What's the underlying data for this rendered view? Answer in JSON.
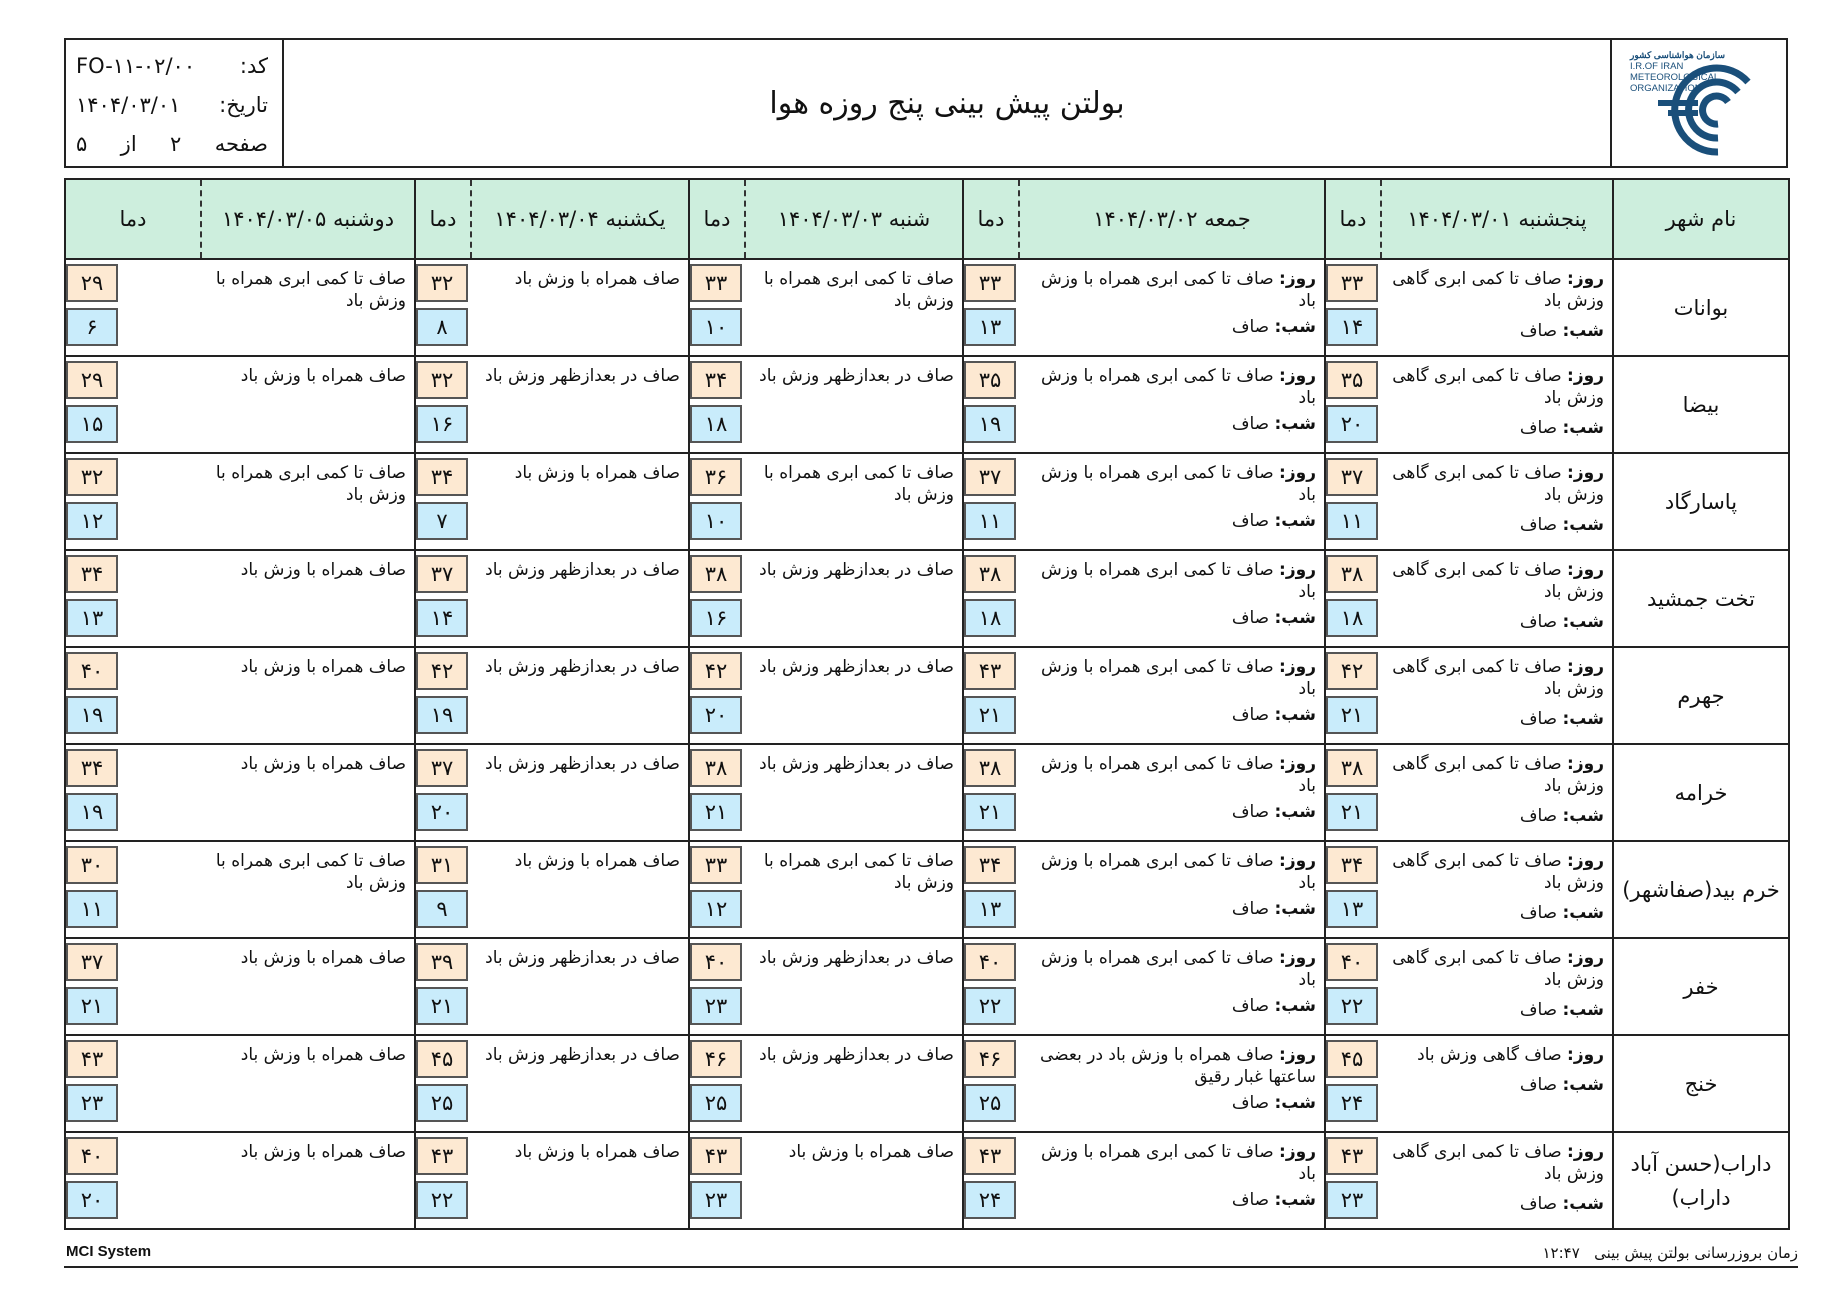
{
  "header": {
    "title": "بولتن پیش بینی پنج روزه هوا",
    "code_label": "کد:",
    "code_value": "FO-۱۱-۰۲/۰۰",
    "date_label": "تاریخ:",
    "date_value": "۱۴۰۴/۰۳/۰۱",
    "page_label": "صفحه",
    "page_current": "۲",
    "page_of": "از",
    "page_total": "۵",
    "logo": {
      "fa_line": "سازمان هواشناسی کشور",
      "en_line1": "I.R.OF IRAN",
      "en_line2": "METEOROLOGICAL",
      "en_line3": "ORGANIZATION"
    }
  },
  "table": {
    "city_header": "نام شهر",
    "temp_header": "دما",
    "days": [
      "پنجشنبه ۱۴۰۴/۰۳/۰۱",
      "جمعه ۱۴۰۴/۰۳/۰۲",
      "شنبه ۱۴۰۴/۰۳/۰۳",
      "یکشنبه ۱۴۰۴/۰۳/۰۴",
      "دوشنبه ۱۴۰۴/۰۳/۰۵"
    ],
    "day_label": "روز:",
    "night_label": "شب:",
    "rows": [
      {
        "city": "بوانات",
        "d1": {
          "day": "صاف تا کمی ابری گاهی وزش باد",
          "night": "صاف",
          "max": "۳۳",
          "min": "۱۴"
        },
        "d2": {
          "day": "صاف تا کمی ابری همراه با وزش باد",
          "night": "صاف",
          "max": "۳۳",
          "min": "۱۳"
        },
        "d3": {
          "text": "صاف تا کمی ابری همراه با وزش باد",
          "max": "۳۳",
          "min": "۱۰"
        },
        "d4": {
          "text": "صاف همراه با وزش باد",
          "max": "۳۲",
          "min": "۸"
        },
        "d5": {
          "text": "صاف تا کمی ابری همراه با وزش باد",
          "max": "۲۹",
          "min": "۶"
        }
      },
      {
        "city": "بیضا",
        "d1": {
          "day": "صاف تا کمی ابری گاهی وزش باد",
          "night": "صاف",
          "max": "۳۵",
          "min": "۲۰"
        },
        "d2": {
          "day": "صاف تا کمی ابری همراه با وزش باد",
          "night": "صاف",
          "max": "۳۵",
          "min": "۱۹"
        },
        "d3": {
          "text": "صاف در بعدازظهر وزش باد",
          "max": "۳۴",
          "min": "۱۸"
        },
        "d4": {
          "text": "صاف در بعدازظهر وزش باد",
          "max": "۳۲",
          "min": "۱۶"
        },
        "d5": {
          "text": "صاف همراه با وزش باد",
          "max": "۲۹",
          "min": "۱۵"
        }
      },
      {
        "city": "پاسارگاد",
        "d1": {
          "day": "صاف تا کمی ابری گاهی وزش باد",
          "night": "صاف",
          "max": "۳۷",
          "min": "۱۱"
        },
        "d2": {
          "day": "صاف تا کمی ابری همراه با وزش باد",
          "night": "صاف",
          "max": "۳۷",
          "min": "۱۱"
        },
        "d3": {
          "text": "صاف تا کمی ابری همراه با وزش باد",
          "max": "۳۶",
          "min": "۱۰"
        },
        "d4": {
          "text": "صاف همراه با وزش باد",
          "max": "۳۴",
          "min": "۷"
        },
        "d5": {
          "text": "صاف تا کمی ابری همراه با وزش باد",
          "max": "۳۲",
          "min": "۱۲"
        }
      },
      {
        "city": "تخت جمشید",
        "d1": {
          "day": "صاف تا کمی ابری گاهی وزش باد",
          "night": "صاف",
          "max": "۳۸",
          "min": "۱۸"
        },
        "d2": {
          "day": "صاف تا کمی ابری همراه با وزش باد",
          "night": "صاف",
          "max": "۳۸",
          "min": "۱۸"
        },
        "d3": {
          "text": "صاف در بعدازظهر وزش باد",
          "max": "۳۸",
          "min": "۱۶"
        },
        "d4": {
          "text": "صاف در بعدازظهر وزش باد",
          "max": "۳۷",
          "min": "۱۴"
        },
        "d5": {
          "text": "صاف همراه با وزش باد",
          "max": "۳۴",
          "min": "۱۳"
        }
      },
      {
        "city": "جهرم",
        "d1": {
          "day": "صاف تا کمی ابری گاهی وزش باد",
          "night": "صاف",
          "max": "۴۲",
          "min": "۲۱"
        },
        "d2": {
          "day": "صاف تا کمی ابری همراه با وزش باد",
          "night": "صاف",
          "max": "۴۳",
          "min": "۲۱"
        },
        "d3": {
          "text": "صاف در بعدازظهر وزش باد",
          "max": "۴۲",
          "min": "۲۰"
        },
        "d4": {
          "text": "صاف در بعدازظهر وزش باد",
          "max": "۴۲",
          "min": "۱۹"
        },
        "d5": {
          "text": "صاف همراه با وزش باد",
          "max": "۴۰",
          "min": "۱۹"
        }
      },
      {
        "city": "خرامه",
        "d1": {
          "day": "صاف تا کمی ابری گاهی وزش باد",
          "night": "صاف",
          "max": "۳۸",
          "min": "۲۱"
        },
        "d2": {
          "day": "صاف تا کمی ابری همراه با وزش باد",
          "night": "صاف",
          "max": "۳۸",
          "min": "۲۱"
        },
        "d3": {
          "text": "صاف در بعدازظهر وزش باد",
          "max": "۳۸",
          "min": "۲۱"
        },
        "d4": {
          "text": "صاف در بعدازظهر وزش باد",
          "max": "۳۷",
          "min": "۲۰"
        },
        "d5": {
          "text": "صاف همراه با وزش باد",
          "max": "۳۴",
          "min": "۱۹"
        }
      },
      {
        "city": "خرم بید(صفاشهر)",
        "d1": {
          "day": "صاف تا کمی ابری گاهی وزش باد",
          "night": "صاف",
          "max": "۳۴",
          "min": "۱۳"
        },
        "d2": {
          "day": "صاف تا کمی ابری همراه با وزش باد",
          "night": "صاف",
          "max": "۳۴",
          "min": "۱۳"
        },
        "d3": {
          "text": "صاف تا کمی ابری همراه با وزش باد",
          "max": "۳۳",
          "min": "۱۲"
        },
        "d4": {
          "text": "صاف همراه با وزش باد",
          "max": "۳۱",
          "min": "۹"
        },
        "d5": {
          "text": "صاف تا کمی ابری همراه با وزش باد",
          "max": "۳۰",
          "min": "۱۱"
        }
      },
      {
        "city": "خفر",
        "d1": {
          "day": "صاف تا کمی ابری گاهی وزش باد",
          "night": "صاف",
          "max": "۴۰",
          "min": "۲۲"
        },
        "d2": {
          "day": "صاف تا کمی ابری همراه با وزش باد",
          "night": "صاف",
          "max": "۴۰",
          "min": "۲۲"
        },
        "d3": {
          "text": "صاف در بعدازظهر وزش باد",
          "max": "۴۰",
          "min": "۲۳"
        },
        "d4": {
          "text": "صاف در بعدازظهر وزش باد",
          "max": "۳۹",
          "min": "۲۱"
        },
        "d5": {
          "text": "صاف همراه با وزش باد",
          "max": "۳۷",
          "min": "۲۱"
        }
      },
      {
        "city": "خنج",
        "d1": {
          "day": "صاف گاهی وزش باد",
          "night": "صاف",
          "max": "۴۵",
          "min": "۲۴"
        },
        "d2": {
          "day": "صاف همراه با وزش باد در بعضی ساعتها غبار رقیق",
          "night": "صاف",
          "max": "۴۶",
          "min": "۲۵"
        },
        "d3": {
          "text": "صاف در بعدازظهر وزش باد",
          "max": "۴۶",
          "min": "۲۵"
        },
        "d4": {
          "text": "صاف در بعدازظهر وزش باد",
          "max": "۴۵",
          "min": "۲۵"
        },
        "d5": {
          "text": "صاف همراه با وزش باد",
          "max": "۴۳",
          "min": "۲۳"
        }
      },
      {
        "city": "داراب(حسن آباد داراب)",
        "d1": {
          "day": "صاف تا کمی ابری گاهی وزش باد",
          "night": "صاف",
          "max": "۴۳",
          "min": "۲۳"
        },
        "d2": {
          "day": "صاف تا کمی ابری همراه با وزش باد",
          "night": "صاف",
          "max": "۴۳",
          "min": "۲۴"
        },
        "d3": {
          "text": "صاف همراه با وزش باد",
          "max": "۴۳",
          "min": "۲۳"
        },
        "d4": {
          "text": "صاف همراه با وزش باد",
          "max": "۴۳",
          "min": "۲۲"
        },
        "d5": {
          "text": "صاف همراه با وزش باد",
          "max": "۴۰",
          "min": "۲۰"
        }
      }
    ]
  },
  "footer": {
    "system": "MCI System",
    "update_label": "زمان بروزرسانی بولتن پیش بینی",
    "update_time": "۱۲:۴۷"
  },
  "colors": {
    "header_bg": "#cdeedd",
    "max_temp_bg": "#fde9d2",
    "min_temp_bg": "#c9ecfb",
    "logo_blue": "#1a4f7a"
  }
}
